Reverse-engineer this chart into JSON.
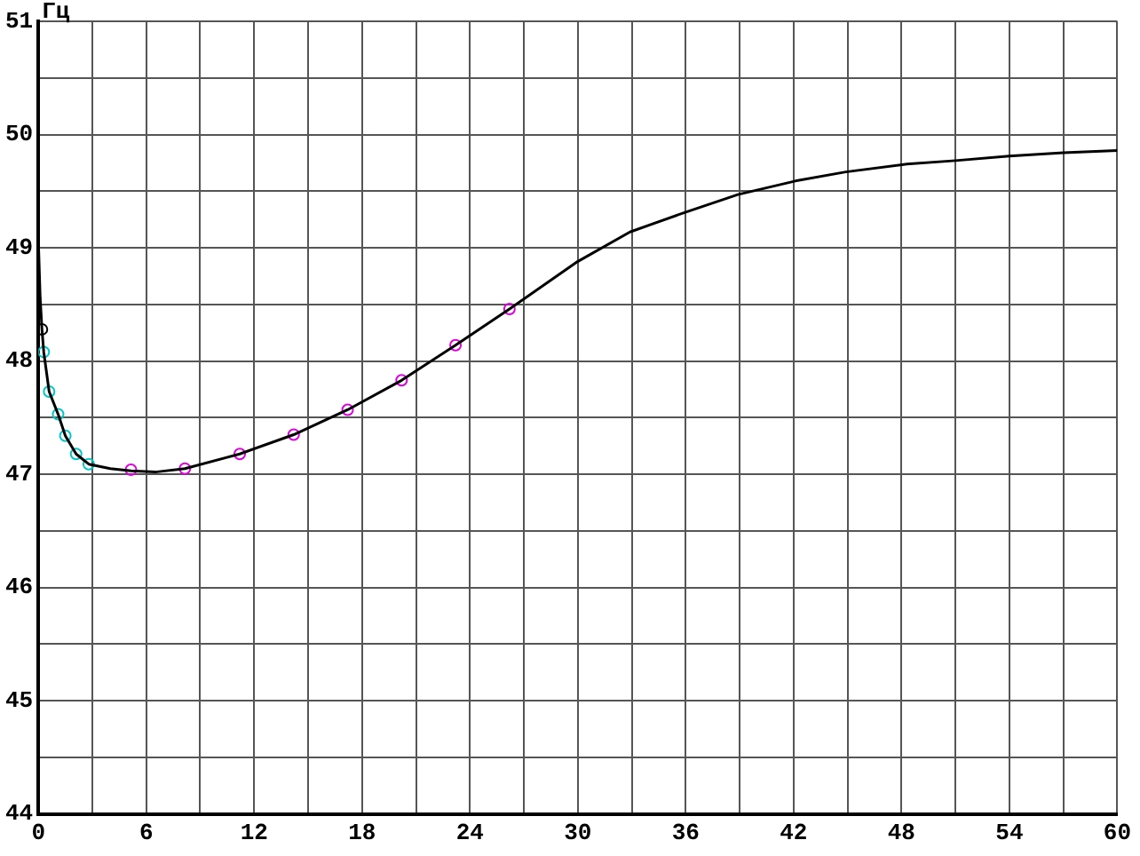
{
  "chart_data": {
    "type": "line",
    "ylabel": "Гц",
    "xlim": [
      0,
      60
    ],
    "ylim": [
      44,
      51
    ],
    "xticks": [
      0,
      {
        "value": 3,
        "label": null
      },
      6,
      {
        "value": 9,
        "label": null
      },
      12,
      {
        "value": 15,
        "label": null
      },
      18,
      {
        "value": 21,
        "label": null
      },
      24,
      {
        "value": 27,
        "label": null
      },
      30,
      {
        "value": 33,
        "label": null
      },
      36,
      {
        "value": 39,
        "label": null
      },
      42,
      {
        "value": 45,
        "label": null
      },
      48,
      {
        "value": 51,
        "label": null
      },
      54,
      {
        "value": 57,
        "label": null
      },
      60
    ],
    "yticks": [
      44,
      {
        "value": 44.5,
        "label": null
      },
      45,
      {
        "value": 45.5,
        "label": null
      },
      46,
      {
        "value": 46.5,
        "label": null
      },
      47,
      {
        "value": 47.5,
        "label": null
      },
      48,
      {
        "value": 48.5,
        "label": null
      },
      49,
      {
        "value": 49.5,
        "label": null
      },
      50,
      {
        "value": 50.5,
        "label": null
      },
      51
    ],
    "grid": true,
    "legend": false,
    "series": [
      {
        "type": "line",
        "color": "#000000",
        "marker": "none",
        "line_style": "solid",
        "x": [
          0,
          0,
          0.1,
          0.2,
          0.3,
          0.6,
          1.1,
          1.5,
          2.1,
          2.8,
          4,
          5.15,
          6.5,
          8.15,
          11.2,
          14.2,
          17.2,
          20.2,
          23.2,
          26.2,
          29.9,
          32.9,
          35.9,
          38.9,
          42.1,
          44.9,
          48.3,
          51,
          54,
          57,
          60
        ],
        "values": [
          49.52,
          49.07,
          48.56,
          48.28,
          48.08,
          47.73,
          47.53,
          47.34,
          47.18,
          47.09,
          47.05,
          47.03,
          47.02,
          47.05,
          47.18,
          47.35,
          47.57,
          47.83,
          48.14,
          48.46,
          48.87,
          49.14,
          49.31,
          49.47,
          49.59,
          49.67,
          49.74,
          49.77,
          49.81,
          49.84,
          49.86
        ]
      },
      {
        "type": "scatter",
        "color": "#00c8c8",
        "marker": "circle",
        "x": [
          0.3,
          0.6,
          1.1,
          1.5,
          2.1,
          2.8
        ],
        "values": [
          48.08,
          47.73,
          47.53,
          47.34,
          47.18,
          47.09
        ]
      },
      {
        "type": "scatter",
        "color": "#e000e0",
        "marker": "circle",
        "x": [
          5.15,
          8.15,
          11.2,
          14.2,
          17.2,
          20.2,
          23.2,
          26.2
        ],
        "values": [
          47.04,
          47.05,
          47.18,
          47.35,
          47.57,
          47.83,
          48.14,
          48.46
        ]
      },
      {
        "type": "scatter",
        "color": "#000000",
        "marker": "circle",
        "x": [
          0.2
        ],
        "values": [
          48.28
        ]
      }
    ]
  }
}
